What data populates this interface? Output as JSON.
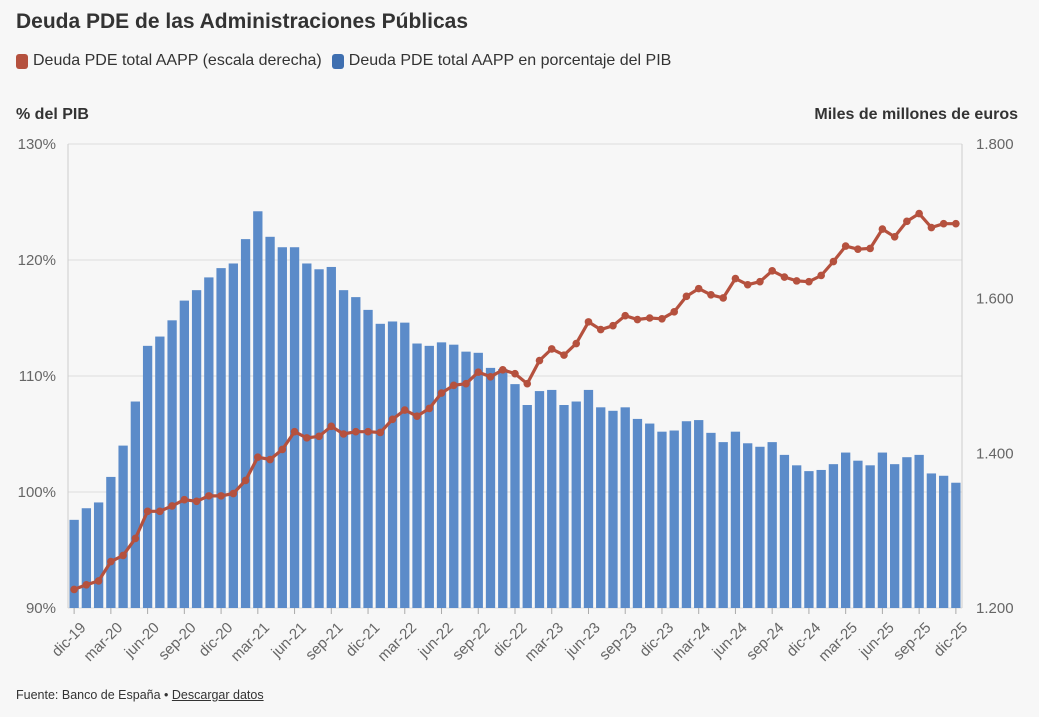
{
  "chart_data": {
    "type": "bar+line",
    "title": "Deuda PDE de las Administraciones Públicas",
    "ylabel_left": "% del PIB",
    "ylabel_right": "Miles de millones de euros",
    "ylim_left": [
      90,
      130
    ],
    "ylim_right": [
      1200,
      1800
    ],
    "yticks_left": [
      {
        "value": 90,
        "label": "90%"
      },
      {
        "value": 100,
        "label": "100%"
      },
      {
        "value": 110,
        "label": "110%"
      },
      {
        "value": 120,
        "label": "120%"
      },
      {
        "value": 130,
        "label": "130%"
      }
    ],
    "yticks_right": [
      {
        "value": 1200,
        "label": "1.200"
      },
      {
        "value": 1400,
        "label": "1.400"
      },
      {
        "value": 1600,
        "label": "1.600"
      },
      {
        "value": 1800,
        "label": "1.800"
      }
    ],
    "x_tick_labels": [
      {
        "index": 0,
        "label": "dic-19"
      },
      {
        "index": 3,
        "label": "mar-20"
      },
      {
        "index": 6,
        "label": "jun-20"
      },
      {
        "index": 9,
        "label": "sep-20"
      },
      {
        "index": 12,
        "label": "dic-20"
      },
      {
        "index": 15,
        "label": "mar-21"
      },
      {
        "index": 18,
        "label": "jun-21"
      },
      {
        "index": 21,
        "label": "sep-21"
      },
      {
        "index": 24,
        "label": "dic-21"
      },
      {
        "index": 27,
        "label": "mar-22"
      },
      {
        "index": 30,
        "label": "jun-22"
      },
      {
        "index": 33,
        "label": "sep-22"
      },
      {
        "index": 36,
        "label": "dic-22"
      },
      {
        "index": 39,
        "label": "mar-23"
      },
      {
        "index": 42,
        "label": "jun-23"
      },
      {
        "index": 45,
        "label": "sep-23"
      },
      {
        "index": 48,
        "label": "dic-23"
      },
      {
        "index": 51,
        "label": "mar-24"
      },
      {
        "index": 54,
        "label": "jun-24"
      },
      {
        "index": 57,
        "label": "sep-24"
      },
      {
        "index": 60,
        "label": "dic-24"
      },
      {
        "index": 63,
        "label": "mar-25"
      },
      {
        "index": 66,
        "label": "jun-25"
      },
      {
        "index": 69,
        "label": "sep-25"
      },
      {
        "index": 72,
        "label": "dic-25"
      }
    ],
    "series": [
      {
        "name": "Deuda PDE total AAPP (escala derecha)",
        "type": "line",
        "axis": "right",
        "color": "#b5513e",
        "values": [
          1224,
          1230,
          1235,
          1260,
          1268,
          1290,
          1325,
          1325,
          1332,
          1340,
          1338,
          1345,
          1345,
          1348,
          1365,
          1395,
          1392,
          1405,
          1428,
          1420,
          1422,
          1435,
          1425,
          1428,
          1428,
          1427,
          1444,
          1456,
          1448,
          1458,
          1478,
          1488,
          1490,
          1505,
          1499,
          1508,
          1503,
          1490,
          1520,
          1535,
          1527,
          1542,
          1570,
          1560,
          1565,
          1578,
          1573,
          1575,
          1574,
          1583,
          1603,
          1613,
          1605,
          1601,
          1626,
          1618,
          1622,
          1636,
          1628,
          1623,
          1622,
          1630,
          1648,
          1668,
          1664,
          1665,
          1690,
          1680,
          1700,
          1710,
          1692,
          1697,
          1697
        ]
      },
      {
        "name": "Deuda PDE total AAPP en porcentaje del PIB",
        "type": "bar",
        "axis": "left",
        "color": "#5b8bc9",
        "values": [
          97.6,
          98.6,
          99.1,
          101.3,
          104.0,
          107.8,
          112.6,
          113.4,
          114.8,
          116.5,
          117.4,
          118.5,
          119.3,
          119.7,
          121.8,
          124.2,
          122.0,
          121.1,
          121.1,
          119.7,
          119.2,
          119.4,
          117.4,
          116.8,
          115.7,
          114.5,
          114.7,
          114.6,
          112.8,
          112.6,
          112.9,
          112.7,
          112.1,
          112.0,
          110.7,
          110.6,
          109.3,
          107.5,
          108.7,
          108.8,
          107.5,
          107.8,
          108.8,
          107.3,
          107.0,
          107.3,
          106.3,
          105.9,
          105.2,
          105.3,
          106.1,
          106.2,
          105.1,
          104.3,
          105.2,
          104.2,
          103.9,
          104.3,
          103.2,
          102.3,
          101.8,
          101.9,
          102.4,
          103.4,
          102.7,
          102.3,
          103.4,
          102.4,
          103.0,
          103.2,
          101.6,
          101.4,
          100.8
        ]
      }
    ],
    "grid": "horizontal"
  },
  "legend": [
    {
      "label": "Deuda PDE total AAPP (escala derecha)",
      "color": "#b5513e"
    },
    {
      "label": "Deuda PDE total AAPP en porcentaje del PIB",
      "color": "#3f6fb0"
    }
  ],
  "footer": {
    "source": "Fuente: Banco de España •",
    "link": "Descargar datos"
  }
}
